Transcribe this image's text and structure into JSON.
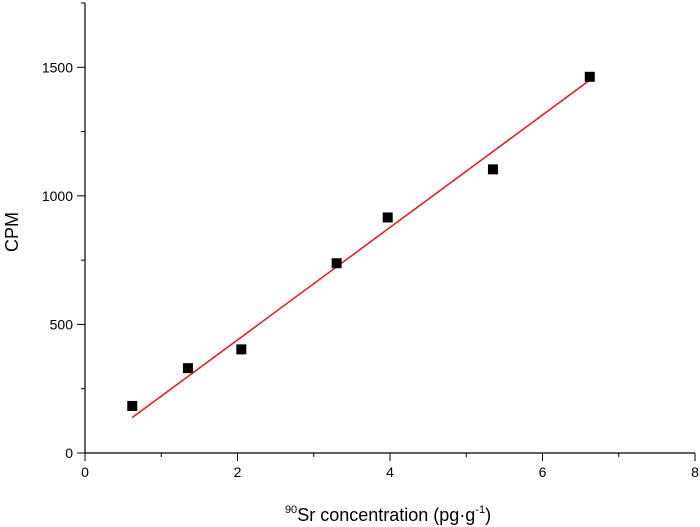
{
  "chart_data": {
    "type": "scatter",
    "title": "",
    "xlabel": {
      "prefix_superscript": "90",
      "main": "Sr concentration (pg·g",
      "exponent": "-1",
      "suffix": ")"
    },
    "ylabel": "CPM",
    "xlim": [
      0,
      8
    ],
    "ylim": [
      0,
      1750
    ],
    "x_ticks": [
      0,
      2,
      4,
      6,
      8
    ],
    "y_ticks": [
      0,
      500,
      1000,
      1500
    ],
    "grid": false,
    "legend": "none",
    "series": [
      {
        "type": "scatter",
        "marker": "square",
        "color": "#000000",
        "points": [
          {
            "x": 0.62,
            "y": 183
          },
          {
            "x": 1.35,
            "y": 330
          },
          {
            "x": 2.05,
            "y": 403
          },
          {
            "x": 3.3,
            "y": 738
          },
          {
            "x": 3.97,
            "y": 916
          },
          {
            "x": 5.35,
            "y": 1103
          },
          {
            "x": 6.62,
            "y": 1463
          }
        ]
      },
      {
        "type": "line",
        "style": "linear-fit",
        "color": "#e8141b",
        "points": [
          {
            "x": 0.62,
            "y": 138
          },
          {
            "x": 6.62,
            "y": 1450
          }
        ]
      }
    ]
  }
}
